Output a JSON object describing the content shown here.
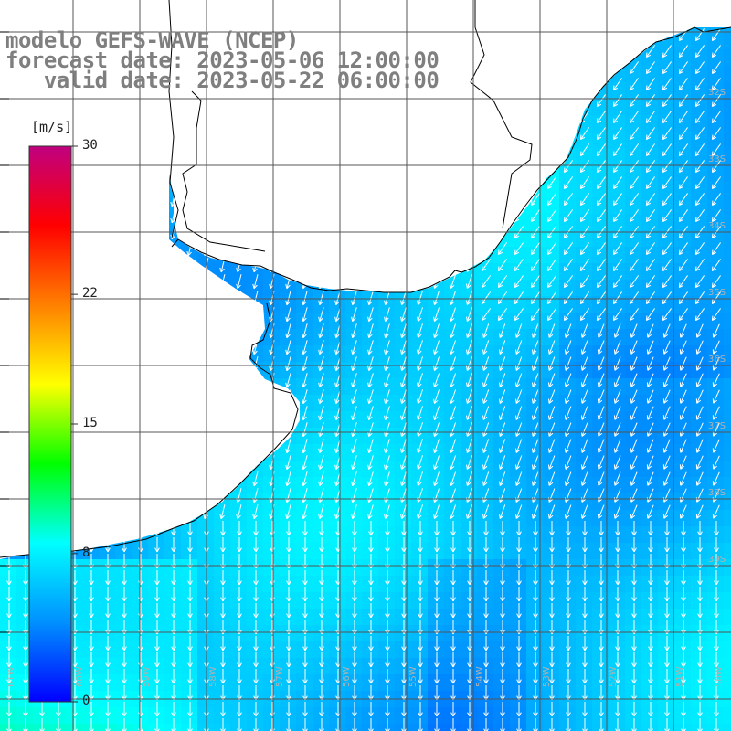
{
  "title": {
    "line1": "modelo GEFS-WAVE (NCEP)",
    "line2": "forecast date: 2023-05-06 12:00:00",
    "line3": "   valid date: 2023-05-22 06:00:00"
  },
  "colorbar": {
    "unit": "[m/s]",
    "ticks": [
      {
        "value": 30,
        "label": "30"
      },
      {
        "value": 22,
        "label": "22"
      },
      {
        "value": 15,
        "label": "15"
      },
      {
        "value": 8,
        "label": "8"
      },
      {
        "value": 0,
        "label": "0"
      }
    ],
    "vmin": 0,
    "vmax": 30,
    "colors": [
      "#0000ff",
      "#0090ff",
      "#00ffff",
      "#00ff00",
      "#ffff00",
      "#ff8000",
      "#ff0000",
      "#c00080"
    ]
  },
  "map": {
    "variable": "wind speed and direction",
    "land_color": "#ffffff",
    "coast_color": "#000000",
    "grid_color": "#555555",
    "arrow_color": "#ffffff",
    "arrow_direction": "south / south-west",
    "sea_wind_speed_range_m_s": [
      5,
      9
    ],
    "lon_labels": [
      "61W",
      "60W",
      "59W",
      "58W",
      "57W",
      "56W",
      "55W",
      "54W",
      "53W",
      "52W",
      "51W",
      "50W"
    ],
    "lat_labels": [
      "32S",
      "33S",
      "34S",
      "35S",
      "36S",
      "37S",
      "38S",
      "39S"
    ]
  }
}
